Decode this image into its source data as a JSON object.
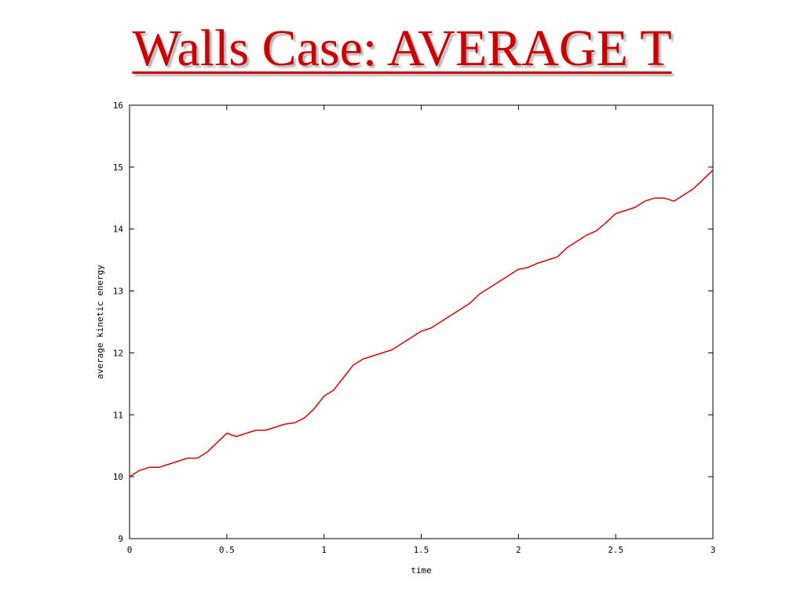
{
  "slide": {
    "title": "Walls Case: AVERAGE T"
  },
  "colors": {
    "title": "#cc0000",
    "series": "#e00000",
    "axis": "#000000"
  },
  "chart_data": {
    "type": "line",
    "xlabel": "time",
    "ylabel": "average kinetic energy",
    "xlim": [
      0,
      3
    ],
    "ylim": [
      9,
      16
    ],
    "xticks": [
      "0",
      "0.5",
      "1",
      "1.5",
      "2",
      "2.5",
      "3"
    ],
    "yticks": [
      "9",
      "10",
      "11",
      "12",
      "13",
      "14",
      "15",
      "16"
    ],
    "grid": false,
    "legend": "none",
    "series": [
      {
        "x": [
          0,
          0.05,
          0.1,
          0.15,
          0.2,
          0.25,
          0.3,
          0.35,
          0.4,
          0.45,
          0.5,
          0.55,
          0.6,
          0.65,
          0.7,
          0.75,
          0.8,
          0.85,
          0.9,
          0.95,
          1.0,
          1.05,
          1.1,
          1.15,
          1.2,
          1.25,
          1.3,
          1.35,
          1.4,
          1.45,
          1.5,
          1.55,
          1.6,
          1.65,
          1.7,
          1.75,
          1.8,
          1.85,
          1.9,
          1.95,
          2.0,
          2.05,
          2.1,
          2.15,
          2.2,
          2.25,
          2.3,
          2.35,
          2.4,
          2.45,
          2.5,
          2.55,
          2.6,
          2.65,
          2.7,
          2.75,
          2.8,
          2.85,
          2.9,
          2.95,
          3.0
        ],
        "values": [
          10.0,
          10.1,
          10.15,
          10.15,
          10.2,
          10.25,
          10.3,
          10.3,
          10.4,
          10.55,
          10.7,
          10.65,
          10.7,
          10.75,
          10.75,
          10.8,
          10.85,
          10.87,
          10.95,
          11.1,
          11.3,
          11.4,
          11.6,
          11.8,
          11.9,
          11.95,
          12.0,
          12.05,
          12.15,
          12.25,
          12.35,
          12.4,
          12.5,
          12.6,
          12.7,
          12.8,
          12.95,
          13.05,
          13.15,
          13.25,
          13.35,
          13.38,
          13.45,
          13.5,
          13.55,
          13.7,
          13.8,
          13.9,
          13.97,
          14.1,
          14.25,
          14.3,
          14.35,
          14.45,
          14.5,
          14.5,
          14.45,
          14.55,
          14.65,
          14.8,
          14.95
        ]
      }
    ]
  }
}
